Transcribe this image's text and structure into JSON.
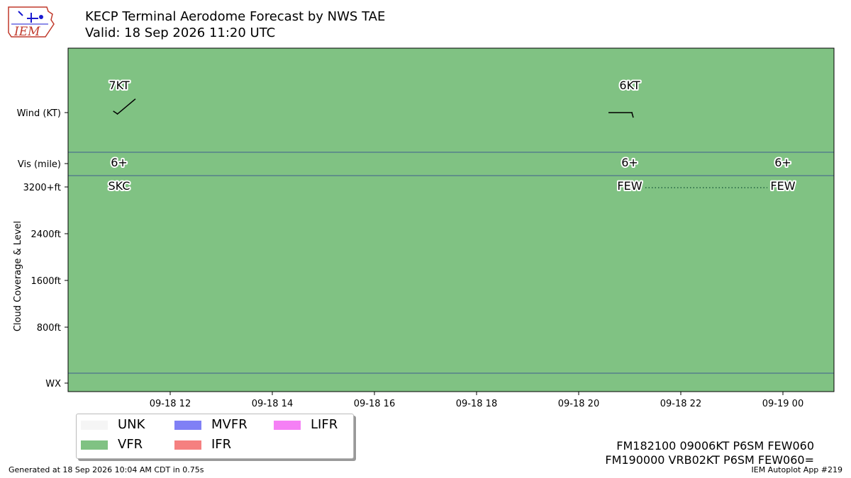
{
  "header": {
    "title_line1": "KECP Terminal Aerodome Forecast by NWS TAE",
    "title_line2": "Valid: 18 Sep 2026 11:20 UTC"
  },
  "logo": {
    "text": "IEM",
    "color": "#c0392b",
    "accent": "#1a1ad0"
  },
  "colors": {
    "UNK": "#f5f5f5",
    "VFR": "#80c283",
    "MVFR": "#8080f5",
    "IFR": "#f58080",
    "LIFR": "#f580f5",
    "divider": "#3f5f8f"
  },
  "legend": {
    "items": [
      {
        "label": "UNK",
        "color": "#f5f5f5"
      },
      {
        "label": "MVFR",
        "color": "#8080f5"
      },
      {
        "label": "LIFR",
        "color": "#f580f5"
      },
      {
        "label": "VFR",
        "color": "#80c283"
      },
      {
        "label": "IFR",
        "color": "#f58080"
      }
    ]
  },
  "chart_data": {
    "type": "timeline",
    "background_category": "VFR",
    "x_axis": {
      "ticks": [
        "09-18 12",
        "09-18 14",
        "09-18 16",
        "09-18 18",
        "09-18 20",
        "09-18 22",
        "09-19 00"
      ],
      "tick_hours": [
        12,
        14,
        16,
        18,
        20,
        22,
        24
      ],
      "range_hours": [
        10.0,
        25.0
      ]
    },
    "y_axis": {
      "label": "Cloud Coverage & Level",
      "rows": [
        "Wind (KT)",
        "Vis (mile)",
        "3200+ft",
        "2400ft",
        "1600ft",
        "800ft",
        "WX"
      ],
      "cloud_ticks": [
        {
          "label": "3200+ft",
          "value": 3200
        },
        {
          "label": "2400ft",
          "value": 2400
        },
        {
          "label": "1600ft",
          "value": 1600
        },
        {
          "label": "800ft",
          "value": 800
        }
      ]
    },
    "wind": [
      {
        "hour": 11.0,
        "label": "7KT",
        "dir_deg": 230,
        "speed_kt": 7
      },
      {
        "hour": 21.0,
        "label": "6KT",
        "dir_deg": 90,
        "speed_kt": 6
      }
    ],
    "visibility": [
      {
        "hour": 11.0,
        "label": "6+"
      },
      {
        "hour": 21.0,
        "label": "6+"
      },
      {
        "hour": 24.0,
        "label": "6+"
      }
    ],
    "clouds": [
      {
        "hour": 11.0,
        "label": "SKC"
      },
      {
        "hour": 21.0,
        "label": "FEW"
      },
      {
        "hour": 24.0,
        "label": "FEW"
      }
    ],
    "cloud_links": [
      {
        "from_hour": 21.0,
        "to_hour": 24.0
      }
    ]
  },
  "taf": {
    "line1": "FM182100 09006KT P6SM FEW060",
    "line2": "FM190000 VRB02KT P6SM FEW060="
  },
  "footer": {
    "generated": "Generated at 18 Sep 2026 10:04 AM CDT in 0.75s",
    "app": "IEM Autoplot App #219"
  }
}
